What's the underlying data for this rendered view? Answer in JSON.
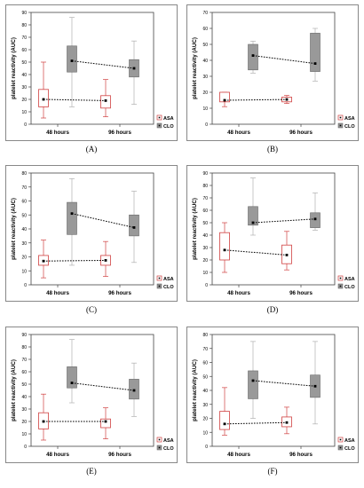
{
  "chart_data": [
    {
      "type": "box",
      "caption": "(A)",
      "ylabel": "platelet reactivity (AUC)",
      "categories": [
        "48 hours",
        "96 hours"
      ],
      "ylim": [
        0,
        90
      ],
      "yticks": [
        0,
        10,
        20,
        30,
        40,
        50,
        60,
        70,
        80,
        90
      ],
      "legend": {
        "placement": "bottom-right"
      },
      "series": [
        {
          "name": "ASA",
          "style": "open",
          "color": "#d04040",
          "boxes": [
            {
              "mean": 20,
              "q1": 14,
              "q3": 28,
              "min": 5,
              "max": 50
            },
            {
              "mean": 19,
              "q1": 13,
              "q3": 23,
              "min": 6,
              "max": 36
            }
          ]
        },
        {
          "name": "CLO",
          "style": "filled",
          "color": "#999999",
          "boxes": [
            {
              "mean": 51,
              "q1": 42,
              "q3": 63,
              "min": 14,
              "max": 86
            },
            {
              "mean": 45,
              "q1": 38,
              "q3": 52,
              "min": 16,
              "max": 67
            }
          ]
        }
      ]
    },
    {
      "type": "box",
      "caption": "(B)",
      "ylabel": "platelet reactivity (AUC)",
      "categories": [
        "48 hours",
        "96 hours"
      ],
      "ylim": [
        0,
        70
      ],
      "yticks": [
        0,
        10,
        20,
        30,
        40,
        50,
        60,
        70
      ],
      "legend": {
        "placement": "bottom-right"
      },
      "series": [
        {
          "name": "ASA",
          "style": "open",
          "color": "#d04040",
          "boxes": [
            {
              "mean": 15,
              "q1": 14,
              "q3": 20,
              "min": 11,
              "max": 20
            },
            {
              "mean": 15.5,
              "q1": 14,
              "q3": 17,
              "min": 13,
              "max": 18
            }
          ]
        },
        {
          "name": "CLO",
          "style": "filled",
          "color": "#999999",
          "boxes": [
            {
              "mean": 43,
              "q1": 34,
              "q3": 50,
              "min": 32,
              "max": 52
            },
            {
              "mean": 38,
              "q1": 33,
              "q3": 57,
              "min": 27,
              "max": 60
            }
          ]
        }
      ]
    },
    {
      "type": "box",
      "caption": "(C)",
      "ylabel": "platelet reactivity (AUC)",
      "categories": [
        "48 hours",
        "96 hours"
      ],
      "ylim": [
        0,
        80
      ],
      "yticks": [
        0,
        10,
        20,
        30,
        40,
        50,
        60,
        70,
        80
      ],
      "legend": {
        "placement": "bottom-right"
      },
      "series": [
        {
          "name": "ASA",
          "style": "open",
          "color": "#d04040",
          "boxes": [
            {
              "mean": 17,
              "q1": 14,
              "q3": 21,
              "min": 5,
              "max": 32
            },
            {
              "mean": 17.5,
              "q1": 14,
              "q3": 21,
              "min": 6,
              "max": 31
            }
          ]
        },
        {
          "name": "CLO",
          "style": "filled",
          "color": "#999999",
          "boxes": [
            {
              "mean": 51,
              "q1": 36,
              "q3": 59,
              "min": 14,
              "max": 76
            },
            {
              "mean": 41,
              "q1": 35,
              "q3": 50,
              "min": 16,
              "max": 67
            }
          ]
        }
      ]
    },
    {
      "type": "box",
      "caption": "(D)",
      "ylabel": "platelet reactivity (AUC)",
      "categories": [
        "48 hours",
        "96 hours"
      ],
      "ylim": [
        0,
        90
      ],
      "yticks": [
        0,
        10,
        20,
        30,
        40,
        50,
        60,
        70,
        80,
        90
      ],
      "legend": {
        "placement": "bottom-right"
      },
      "series": [
        {
          "name": "ASA",
          "style": "open",
          "color": "#d04040",
          "boxes": [
            {
              "mean": 28,
              "q1": 20,
              "q3": 42,
              "min": 10,
              "max": 50
            },
            {
              "mean": 24,
              "q1": 17,
              "q3": 32,
              "min": 12,
              "max": 43
            }
          ]
        },
        {
          "name": "CLO",
          "style": "filled",
          "color": "#999999",
          "boxes": [
            {
              "mean": 50,
              "q1": 48,
              "q3": 63,
              "min": 40,
              "max": 86
            },
            {
              "mean": 53,
              "q1": 46,
              "q3": 58,
              "min": 44,
              "max": 74
            }
          ]
        }
      ]
    },
    {
      "type": "box",
      "caption": "(E)",
      "ylabel": "platelet reactivity (AUC)",
      "categories": [
        "48 hours",
        "96 hours"
      ],
      "ylim": [
        0,
        90
      ],
      "yticks": [
        0,
        10,
        20,
        30,
        40,
        50,
        60,
        70,
        80,
        90
      ],
      "legend": {
        "placement": "bottom-right"
      },
      "series": [
        {
          "name": "ASA",
          "style": "open",
          "color": "#d04040",
          "boxes": [
            {
              "mean": 20,
              "q1": 14,
              "q3": 27,
              "min": 5,
              "max": 42
            },
            {
              "mean": 20,
              "q1": 15,
              "q3": 22,
              "min": 6,
              "max": 31
            }
          ]
        },
        {
          "name": "CLO",
          "style": "filled",
          "color": "#999999",
          "boxes": [
            {
              "mean": 51,
              "q1": 47,
              "q3": 64,
              "min": 35,
              "max": 86
            },
            {
              "mean": 45,
              "q1": 38,
              "q3": 54,
              "min": 24,
              "max": 67
            }
          ]
        }
      ]
    },
    {
      "type": "box",
      "caption": "(F)",
      "ylabel": "platelet reactivity (AUC)",
      "categories": [
        "48 hours",
        "96 hours"
      ],
      "ylim": [
        0,
        80
      ],
      "yticks": [
        0,
        10,
        20,
        30,
        40,
        50,
        60,
        70,
        80
      ],
      "legend": {
        "placement": "bottom-right"
      },
      "series": [
        {
          "name": "ASA",
          "style": "open",
          "color": "#d04040",
          "boxes": [
            {
              "mean": 16,
              "q1": 12,
              "q3": 25,
              "min": 8,
              "max": 42
            },
            {
              "mean": 17,
              "q1": 14,
              "q3": 21,
              "min": 9,
              "max": 28
            }
          ]
        },
        {
          "name": "CLO",
          "style": "filled",
          "color": "#999999",
          "boxes": [
            {
              "mean": 47,
              "q1": 34,
              "q3": 54,
              "min": 20,
              "max": 75
            },
            {
              "mean": 43,
              "q1": 35,
              "q3": 51,
              "min": 16,
              "max": 75
            }
          ]
        }
      ]
    }
  ]
}
